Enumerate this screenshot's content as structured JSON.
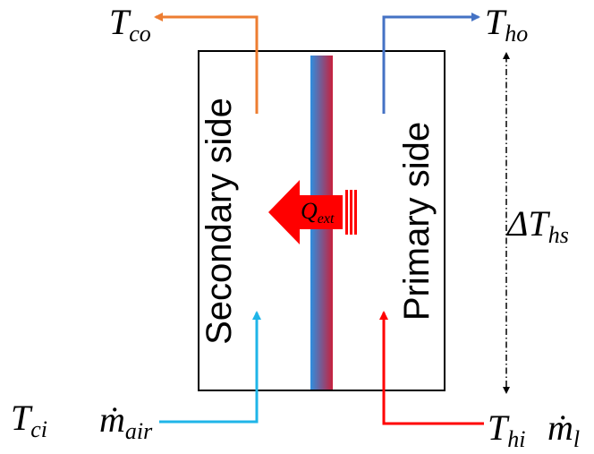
{
  "labels": {
    "t_co": {
      "main": "T",
      "sub": "co"
    },
    "t_ho": {
      "main": "T",
      "sub": "ho"
    },
    "t_ci": {
      "main": "T",
      "sub": "ci"
    },
    "t_hi": {
      "main": "T",
      "sub": "hi"
    },
    "m_air": {
      "main": "ṁ",
      "sub": "air"
    },
    "m_l": {
      "main": "ṁ",
      "sub": "l"
    },
    "delta_t_hs": {
      "main": "ΔT",
      "sub": "hs"
    },
    "q_ext": {
      "main": "Q",
      "sub": "ext"
    }
  },
  "sides": {
    "secondary": "Secondary side",
    "primary": "Primary side"
  },
  "colors": {
    "cold_out": "#ED7D31",
    "hot_out": "#4472C4",
    "cold_in": "#1FB5E8",
    "hot_in": "#FF0000",
    "heat_arrow": "#FF0000",
    "wall_blue": "#2E8FE0",
    "wall_red": "#C8203C",
    "frame": "#000000"
  }
}
